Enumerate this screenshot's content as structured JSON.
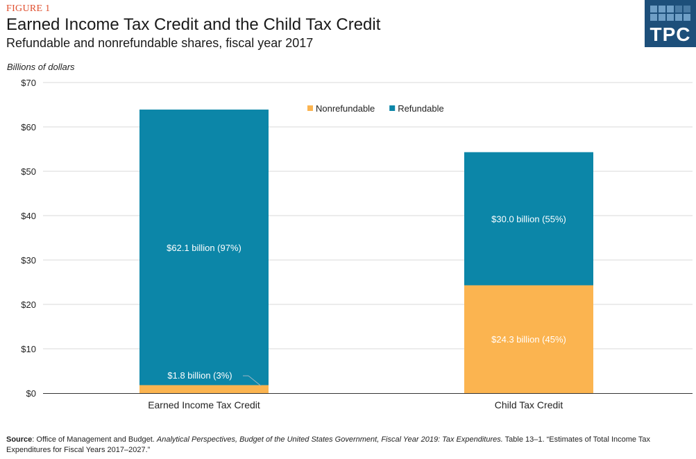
{
  "figure_label": "FIGURE 1",
  "logo_text": "TPC",
  "source": {
    "label": "Source",
    "org": ": Office of Management and Budget. ",
    "pub": "Analytical Perspectives, Budget of the United States Government, Fiscal Year 2019: Tax Expenditures.",
    "rest": " Table 13–1. “Estimates of Total Income Tax Expenditures for Fiscal Years 2017–2027.”"
  },
  "colors": {
    "refundable": "#0c86a8",
    "nonrefundable": "#fbb450",
    "axis": "#333333",
    "grid": "#d9d9d9"
  },
  "chart_data": {
    "type": "bar",
    "stacked": true,
    "title": "Earned Income Tax Credit and the Child Tax Credit",
    "subtitle": "Refundable and nonrefundable shares, fiscal year 2017",
    "ylabel": "Billions of dollars",
    "xlabel": "",
    "ylim": [
      0,
      70
    ],
    "yticks": [
      0,
      10,
      20,
      30,
      40,
      50,
      60,
      70
    ],
    "ytick_labels": [
      "$0",
      "$10",
      "$20",
      "$30",
      "$40",
      "$50",
      "$60",
      "$70"
    ],
    "categories": [
      "Earned Income Tax Credit",
      "Child Tax Credit"
    ],
    "legend_position": "top-center",
    "series": [
      {
        "name": "Nonrefundable",
        "values": [
          1.8,
          24.3
        ],
        "labels": [
          "$1.8 billion (3%)",
          "$24.3 billion (45%)"
        ]
      },
      {
        "name": "Refundable",
        "values": [
          62.1,
          30.0
        ],
        "labels": [
          "$62.1 billion (97%)",
          "$30.0 billion (55%)"
        ]
      }
    ],
    "grid": true
  }
}
